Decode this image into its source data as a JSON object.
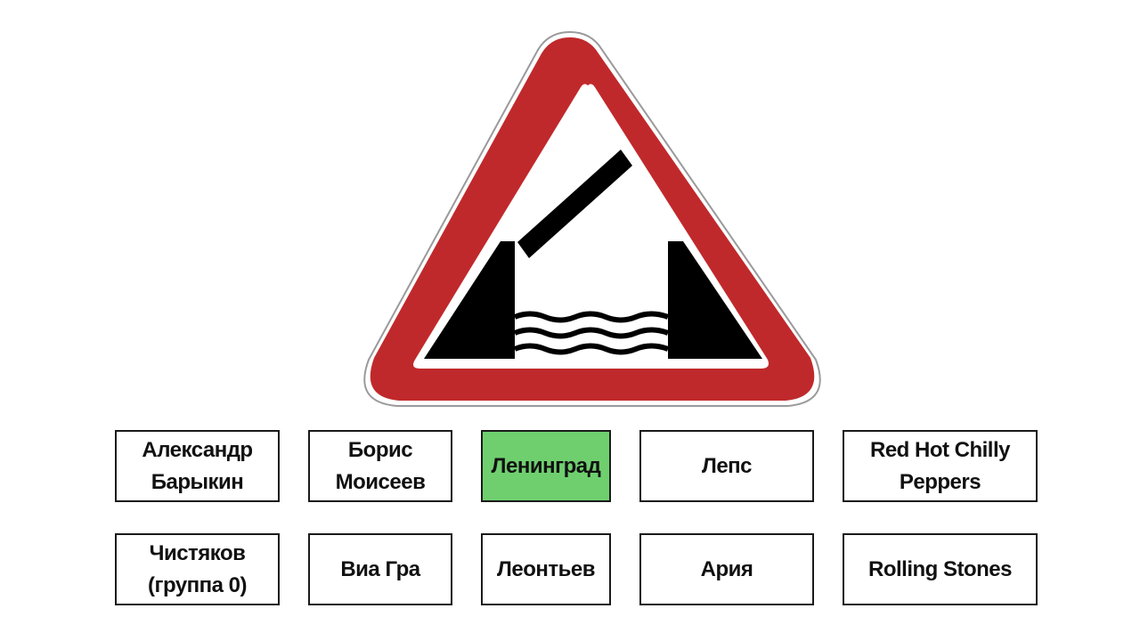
{
  "sign": {
    "icon": "drawbridge-warning-sign",
    "border_color": "#c0292b",
    "symbol_color": "#000000",
    "inner_color": "#ffffff"
  },
  "answers": [
    {
      "label": "Александр\nБарыкин",
      "selected": false
    },
    {
      "label": "Борис\nМоисеев",
      "selected": false
    },
    {
      "label": "Ленинград",
      "selected": true
    },
    {
      "label": "Лепс",
      "selected": false
    },
    {
      "label": "Red Hot Chilly\nPeppers",
      "selected": false
    },
    {
      "label": "Чистяков\n(группа 0)",
      "selected": false
    },
    {
      "label": "Виа Гра",
      "selected": false
    },
    {
      "label": "Леонтьев",
      "selected": false
    },
    {
      "label": "Ария",
      "selected": false
    },
    {
      "label": "Rolling Stones",
      "selected": false
    }
  ],
  "colors": {
    "correct_highlight": "#6fcf6f",
    "button_border": "#1a1a1a"
  }
}
